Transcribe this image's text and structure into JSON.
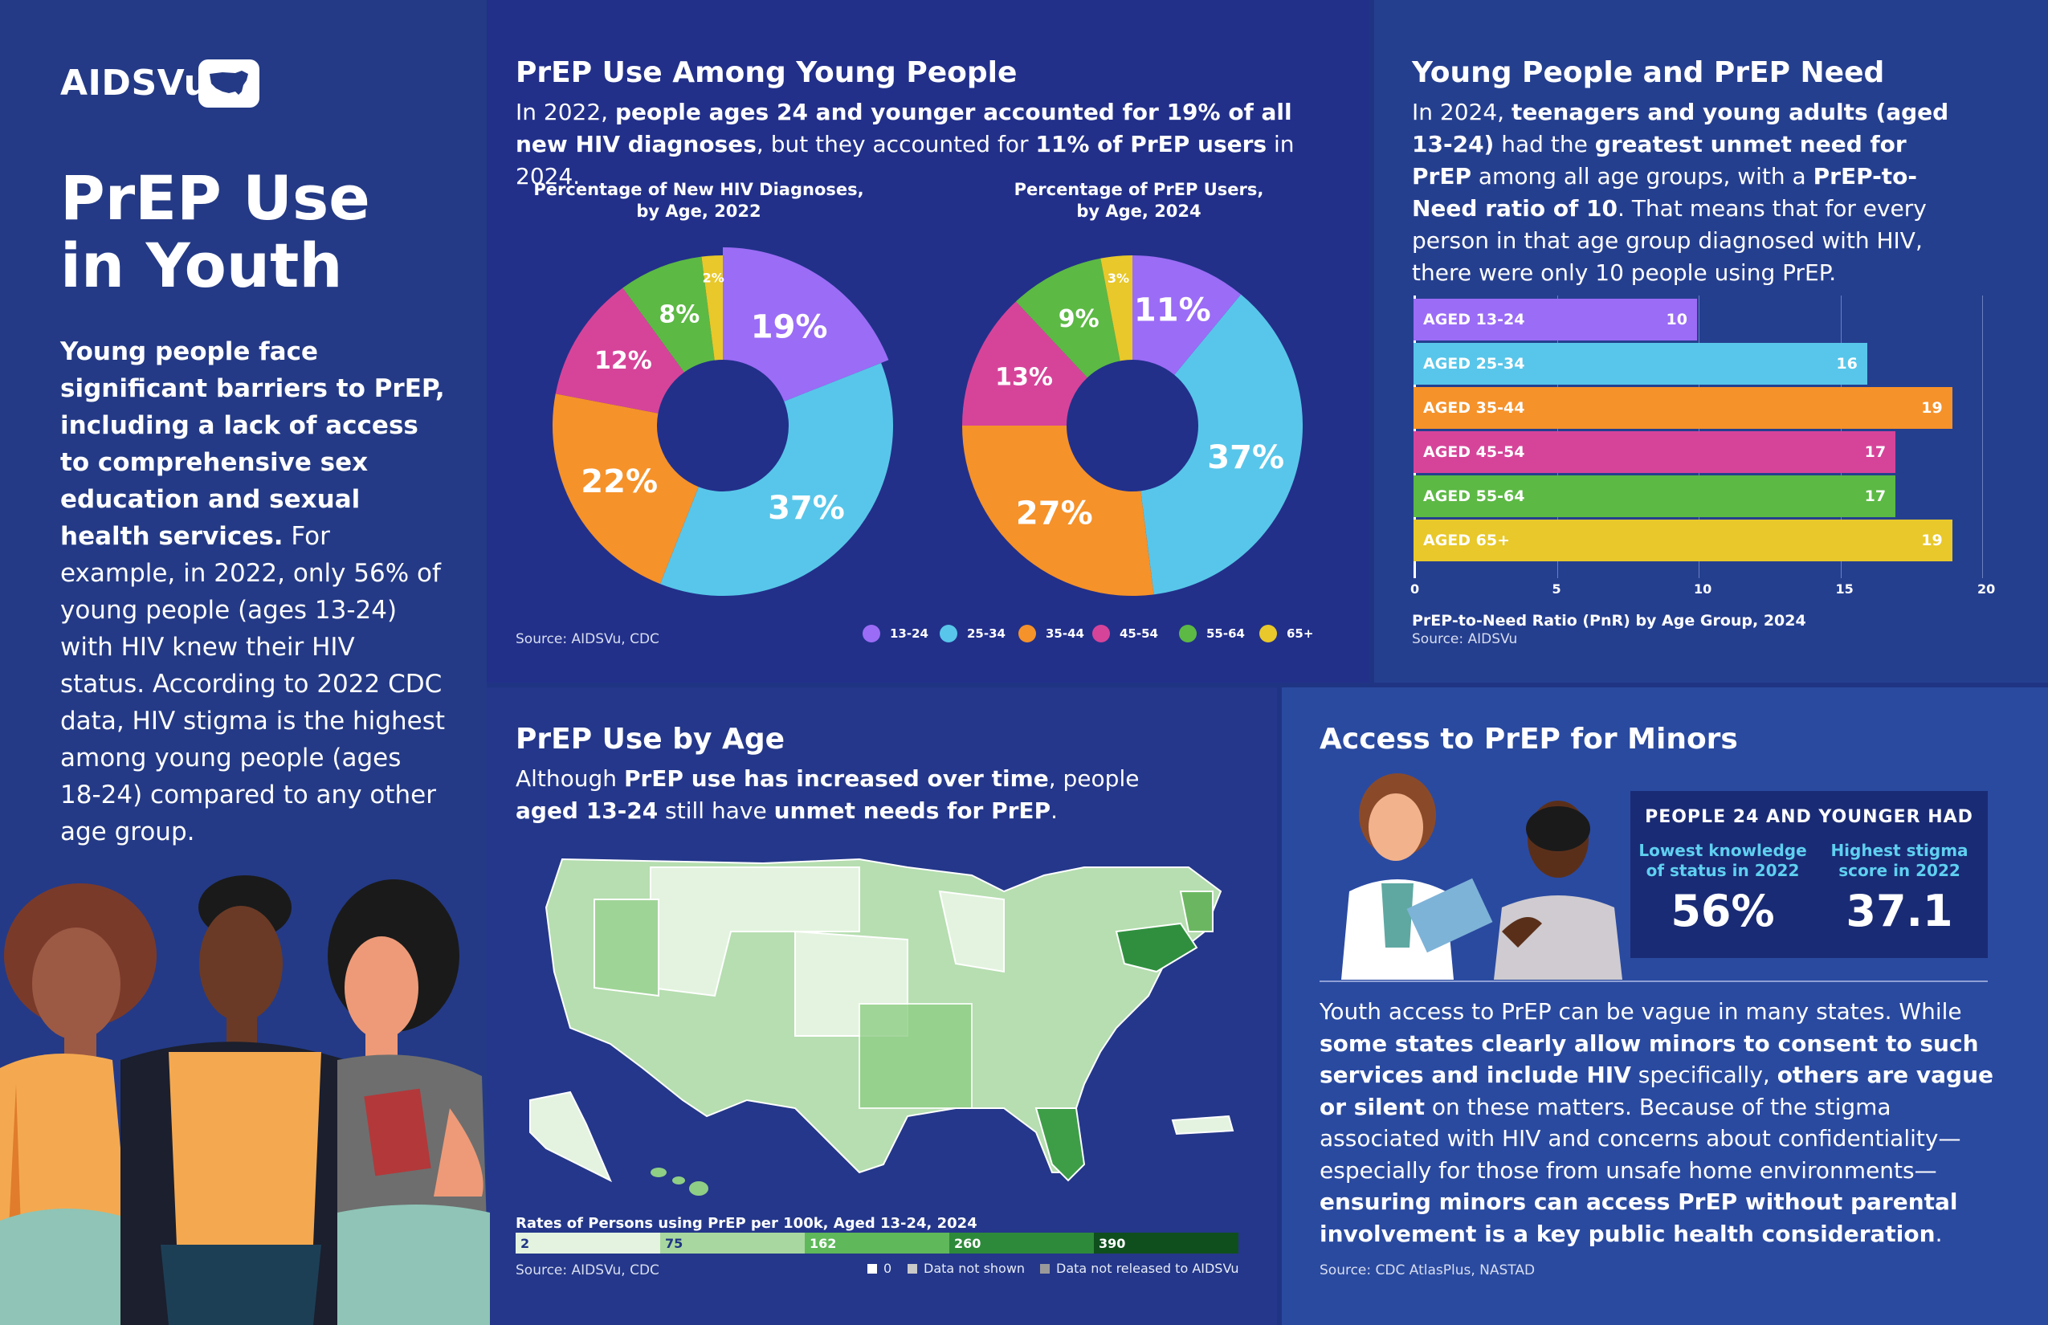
{
  "brand": {
    "name": "AIDSVu"
  },
  "left": {
    "title_line1": "PrEP Use",
    "title_line2": "in Youth",
    "intro_bold": "Young people face significant barriers to PrEP, including a lack of access to comprehensive sex education and sexual health services.",
    "intro_rest": " For example, in 2022, only 56% of young people (ages 13-24) with HIV knew their HIV status. According to 2022 CDC data, HIV stigma is the highest among young people (ages 18-24) compared to any other age group."
  },
  "prep_use_young": {
    "title": "PrEP Use Among Young People",
    "text_1": "In 2022, ",
    "text_2": "people ages 24 and younger accounted for 19% of all new HIV diagnoses",
    "text_3": ", but they accounted for ",
    "text_4": "11% of PrEP users",
    "text_5": " in 2024.",
    "chart1_title_l1": "Percentage of New HIV Diagnoses,",
    "chart1_title_l2": "by Age, 2022",
    "chart2_title_l1": "Percentage of PrEP Users,",
    "chart2_title_l2": "by Age, 2024",
    "source": "Source: AIDSVu, CDC"
  },
  "need": {
    "title": "Young People and PrEP Need",
    "p1": "In 2024, ",
    "p2": "teenagers and young adults (aged 13-24)",
    "p3": " had the ",
    "p4": "greatest unmet need for PrEP",
    "p5": " among all age groups, with a ",
    "p6": "PrEP-to-Need ratio of 10",
    "p7": ". That means that for every person in that age group diagnosed with HIV, there were only 10 people using PrEP.",
    "chart_caption": "PrEP-to-Need Ratio (PnR) by Age Group, 2024",
    "source": "Source: AIDSVu"
  },
  "by_age": {
    "title": "PrEP Use by Age",
    "t1": "Although ",
    "t2": "PrEP use has increased over time",
    "t3": ", people ",
    "t4": "aged 13-24",
    "t5": " still have ",
    "t6": "unmet needs for PrEP",
    "t7": ".",
    "map_caption": "Rates of Persons using PrEP per 100k, Aged 13-24, 2024",
    "legend_values": [
      "2",
      "75",
      "162",
      "260",
      "390"
    ],
    "legend_zero": "0",
    "legend_not_shown": "Data not shown",
    "legend_not_released": "Data not released to AIDSVu",
    "source": "Source: AIDSVu, CDC"
  },
  "minors": {
    "title": "Access to PrEP for Minors",
    "box_head": "PEOPLE 24 AND YOUNGER HAD",
    "stat1_label_l1": "Lowest knowledge",
    "stat1_label_l2": "of status in 2022",
    "stat1_value": "56%",
    "stat2_label_l1": "Highest stigma",
    "stat2_label_l2": "score in 2022",
    "stat2_value": "37.1",
    "p1": "Youth access to PrEP can be vague in many states. While ",
    "p2": "some states clearly allow minors to consent to such services and include HIV",
    "p3": " specifically, ",
    "p4": "others are vague or silent",
    "p5": " on these matters. Because of the stigma associated with HIV and concerns about confidentiality—especially for those from unsafe home environments—",
    "p6": "ensuring minors can access PrEP without parental involvement is a key public health consideration",
    "p7": ".",
    "source": "Source: CDC AtlasPlus, NASTAD"
  },
  "chart_data": [
    {
      "type": "pie",
      "title": "Percentage of New HIV Diagnoses, by Age, 2022",
      "categories": [
        "13-24",
        "25-34",
        "35-44",
        "45-54",
        "55-64",
        "65+"
      ],
      "values": [
        19,
        37,
        22,
        12,
        8,
        2
      ],
      "labels": [
        "19%",
        "37%",
        "22%",
        "12%",
        "8%",
        "2%"
      ],
      "colors": [
        "#9b6cf6",
        "#58c6ea",
        "#f5922a",
        "#d6449a",
        "#5cb944",
        "#e8c82a"
      ]
    },
    {
      "type": "pie",
      "title": "Percentage of PrEP Users, by Age, 2024",
      "categories": [
        "13-24",
        "25-34",
        "35-44",
        "45-54",
        "55-64",
        "65+"
      ],
      "values": [
        11,
        37,
        27,
        13,
        9,
        3
      ],
      "labels": [
        "11%",
        "37%",
        "27%",
        "13%",
        "9%",
        "3%"
      ],
      "colors": [
        "#9b6cf6",
        "#58c6ea",
        "#f5922a",
        "#d6449a",
        "#5cb944",
        "#e8c82a"
      ]
    },
    {
      "type": "bar",
      "title": "PrEP-to-Need Ratio (PnR) by Age Group, 2024",
      "categories": [
        "AGED 13-24",
        "AGED 25-34",
        "AGED 35-44",
        "AGED 45-54",
        "AGED 55-64",
        "AGED 65+"
      ],
      "values": [
        10,
        16,
        19,
        17,
        17,
        19
      ],
      "xlim": [
        0,
        20
      ],
      "ticks": [
        "0",
        "5",
        "10",
        "15",
        "20"
      ],
      "colors": [
        "#9b6cf6",
        "#58c6ea",
        "#f5922a",
        "#d6449a",
        "#5cb944",
        "#e8c82a"
      ]
    }
  ],
  "legend": {
    "items": [
      "13-24",
      "25-34",
      "35-44",
      "45-54",
      "55-64",
      "65+"
    ],
    "colors": [
      "#9b6cf6",
      "#58c6ea",
      "#f5922a",
      "#d6449a",
      "#5cb944",
      "#e8c82a"
    ]
  }
}
